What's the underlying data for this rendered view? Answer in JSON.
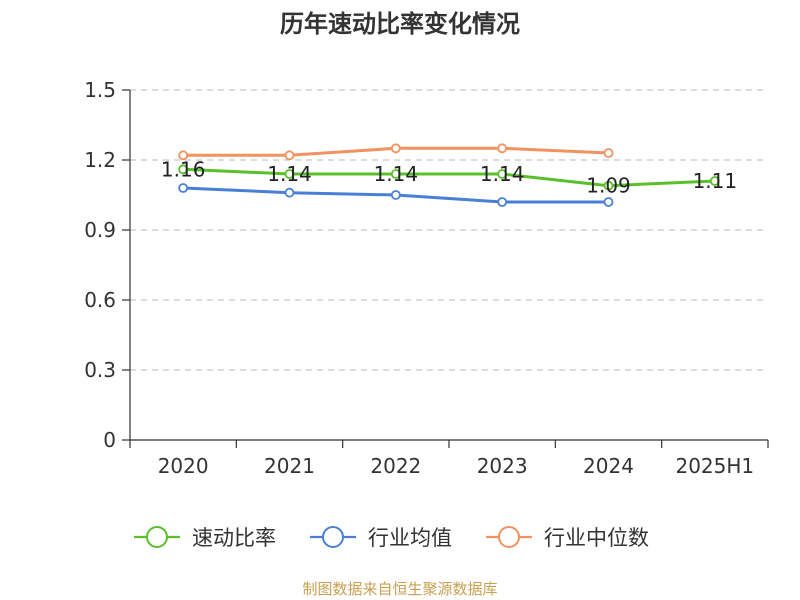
{
  "chart_data": {
    "type": "line",
    "title": "历年速动比率变化情况",
    "categories": [
      "2020",
      "2021",
      "2022",
      "2023",
      "2024",
      "2025H1"
    ],
    "y_ticks": [
      "0",
      "0.3",
      "0.6",
      "0.9",
      "1.2",
      "1.5"
    ],
    "ylim": [
      0,
      1.5
    ],
    "grid": true,
    "legend_position": "bottom",
    "series": [
      {
        "name": "速动比率",
        "color": "#5ac02a",
        "values": [
          1.16,
          1.14,
          1.14,
          1.14,
          1.09,
          1.11
        ],
        "labels": [
          "1.16",
          "1.14",
          "1.14",
          "1.14",
          "1.09",
          "1.11"
        ]
      },
      {
        "name": "行业均值",
        "color": "#4a7fd8",
        "values": [
          1.08,
          1.06,
          1.05,
          1.02,
          1.02,
          null
        ]
      },
      {
        "name": "行业中位数",
        "color": "#f29260",
        "values": [
          1.22,
          1.22,
          1.25,
          1.25,
          1.23,
          null
        ]
      }
    ]
  },
  "source": "制图数据来自恒生聚源数据库"
}
